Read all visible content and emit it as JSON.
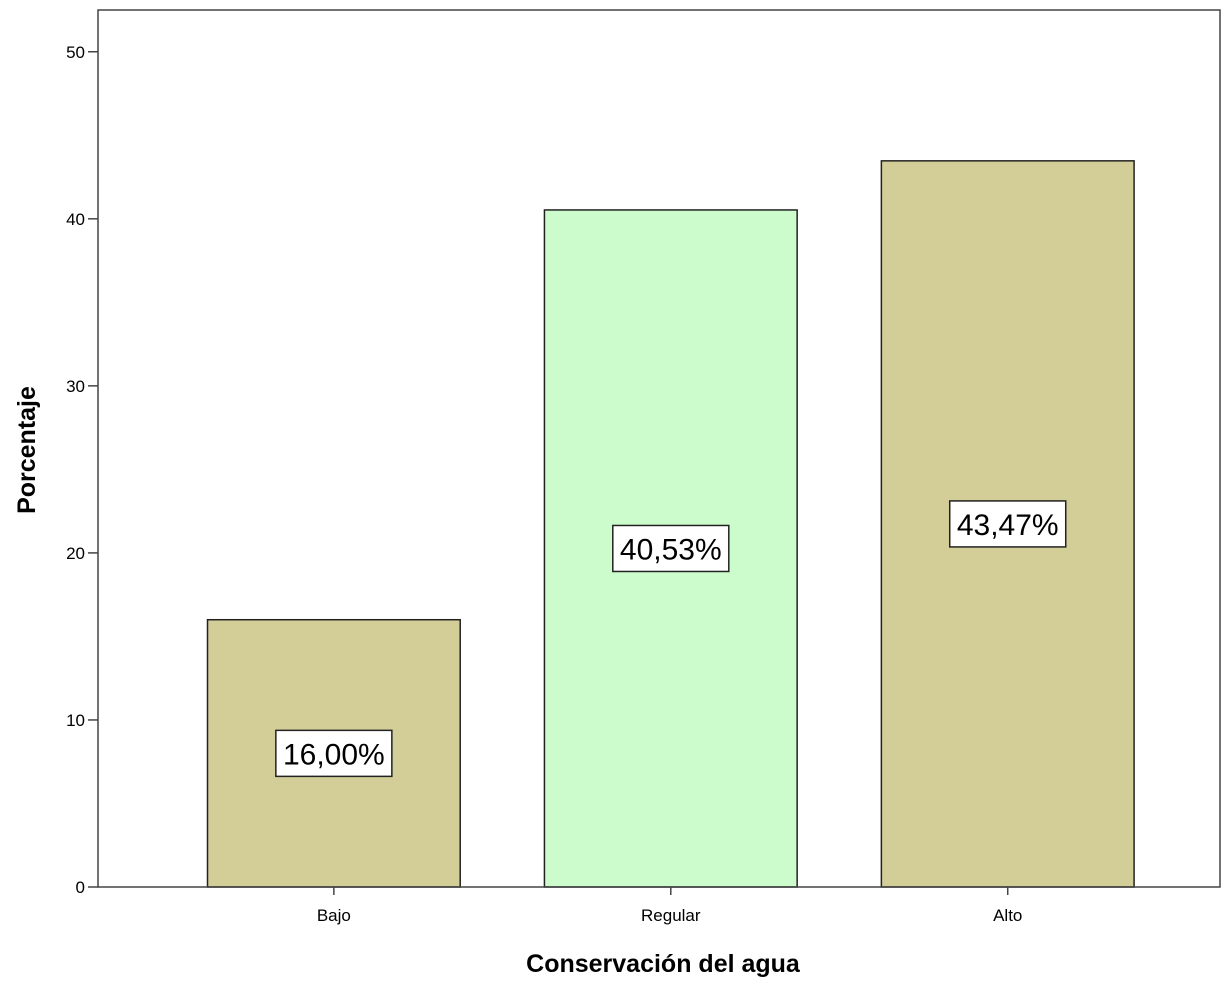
{
  "chart_data": {
    "type": "bar",
    "title": "",
    "xlabel": "Conservación del agua",
    "ylabel": "Porcentaje",
    "categories": [
      "Bajo",
      "Regular",
      "Alto"
    ],
    "values": [
      16.0,
      40.53,
      43.47
    ],
    "data_labels": [
      "16,00%",
      "40,53%",
      "43,47%"
    ],
    "bar_colors": [
      "#d3cd98",
      "#ccfccc",
      "#d3cd98"
    ],
    "ylim": [
      0,
      52.5
    ],
    "yticks": [
      0,
      10,
      20,
      30,
      40,
      50
    ],
    "ytick_labels": [
      "0",
      "10",
      "20",
      "30",
      "40",
      "50"
    ],
    "grid": false,
    "legend": "none"
  }
}
